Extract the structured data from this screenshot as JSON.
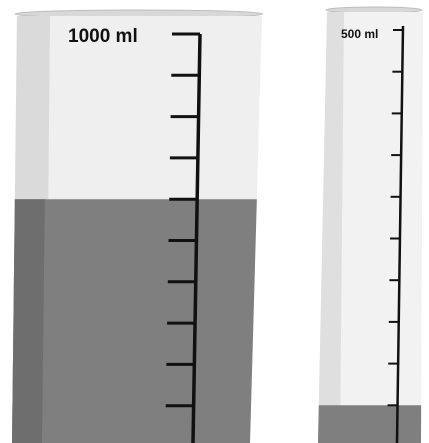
{
  "containers": [
    {
      "id": "large",
      "capacity_label": "1000 ml",
      "capacity_ml": 1000,
      "liquid_level_ml": 600,
      "graduation_count": 10
    },
    {
      "id": "small",
      "capacity_label": "500 ml",
      "capacity_ml": 500,
      "liquid_level_ml": 50,
      "graduation_count": 10
    }
  ],
  "colors": {
    "glass": "#ececec",
    "glass_shadow": "#c9c9c9",
    "liquid": "#7f7f7f",
    "liquid_dark": "#6d6d6d",
    "scale": "#111111"
  }
}
